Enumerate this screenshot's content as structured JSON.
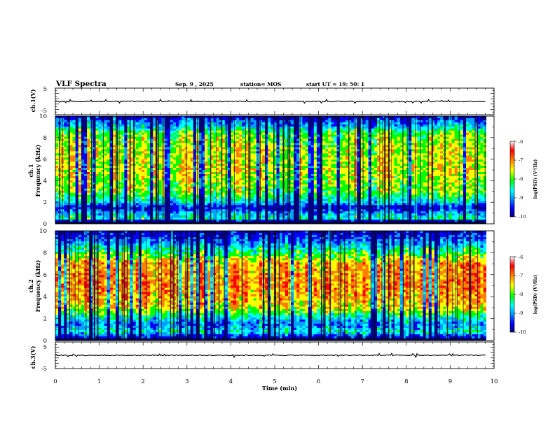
{
  "header": {
    "title": "VLF Spectra",
    "date": "Sep. 9 , 2025",
    "station": "station= MOS",
    "start_ut": "start  UT =   19: 50: 1"
  },
  "chart_data": [
    {
      "type": "line",
      "name": "ch1-waveform",
      "ylabel": "ch.1(V)",
      "ylim": [
        -5,
        5
      ],
      "yticks": [
        "5",
        "-5"
      ],
      "xlim": [
        0,
        10
      ],
      "baseline": 0
    },
    {
      "type": "heatmap",
      "name": "ch1-spectrogram",
      "ylabel": "ch.1\nFrequency  (kHz)",
      "ylim": [
        0,
        10
      ],
      "yticks": [
        "10",
        "8",
        "6",
        "4",
        "2",
        "0"
      ],
      "xlim": [
        0,
        10
      ],
      "band_profile_khz": [
        {
          "f": 0.0,
          "level": 0.55
        },
        {
          "f": 0.25,
          "level": 0.1
        },
        {
          "f": 0.5,
          "level": 0.5
        },
        {
          "f": 1.0,
          "level": 0.35
        },
        {
          "f": 1.5,
          "level": 0.15
        },
        {
          "f": 2.0,
          "level": 0.42
        },
        {
          "f": 3.0,
          "level": 0.62
        },
        {
          "f": 5.0,
          "level": 0.7
        },
        {
          "f": 7.0,
          "level": 0.68
        },
        {
          "f": 8.5,
          "level": 0.6
        },
        {
          "f": 9.0,
          "level": 0.4
        },
        {
          "f": 9.5,
          "level": 0.3
        },
        {
          "f": 10.0,
          "level": 0.1
        }
      ],
      "colorbar": {
        "label": "log(PSD) (V²/Hz)",
        "ticks": [
          "-6",
          "-7",
          "-8",
          "-9",
          "-10"
        ],
        "range": [
          -10,
          -6
        ]
      }
    },
    {
      "type": "heatmap",
      "name": "ch2-spectrogram",
      "ylabel": "ch.2\nFrequency  (kHz)",
      "ylim": [
        0,
        10
      ],
      "yticks": [
        "10",
        "8",
        "6",
        "4",
        "2",
        "0"
      ],
      "xlim": [
        0,
        10
      ],
      "band_profile_khz": [
        {
          "f": 0.0,
          "level": 0.5
        },
        {
          "f": 0.3,
          "level": 0.15
        },
        {
          "f": 0.8,
          "level": 0.45
        },
        {
          "f": 1.5,
          "level": 0.3
        },
        {
          "f": 2.3,
          "level": 0.5
        },
        {
          "f": 3.0,
          "level": 0.72
        },
        {
          "f": 5.0,
          "level": 0.82
        },
        {
          "f": 7.0,
          "level": 0.78
        },
        {
          "f": 8.0,
          "level": 0.55
        },
        {
          "f": 9.0,
          "level": 0.3
        },
        {
          "f": 10.0,
          "level": 0.12
        }
      ],
      "colorbar": {
        "label": "log(PSD) (V²/Hz)",
        "ticks": [
          "-6",
          "-7",
          "-8",
          "-9",
          "-10"
        ],
        "range": [
          -10,
          -6
        ]
      }
    },
    {
      "type": "line",
      "name": "ch3-waveform",
      "ylabel": "ch.3(V)",
      "ylim": [
        -5,
        5
      ],
      "yticks": [
        "5",
        "-5"
      ],
      "xlim": [
        0,
        10
      ],
      "baseline": 0
    }
  ],
  "xaxis": {
    "label": "Time  (min)",
    "ticks": [
      "0",
      "1",
      "2",
      "3",
      "4",
      "5",
      "6",
      "7",
      "8",
      "9",
      "10"
    ]
  },
  "colors": {
    "colormap": [
      "#000080",
      "#0000ff",
      "#00a0ff",
      "#00ffff",
      "#00ff00",
      "#ffff00",
      "#ff8000",
      "#ff0000",
      "#ffffff"
    ]
  }
}
